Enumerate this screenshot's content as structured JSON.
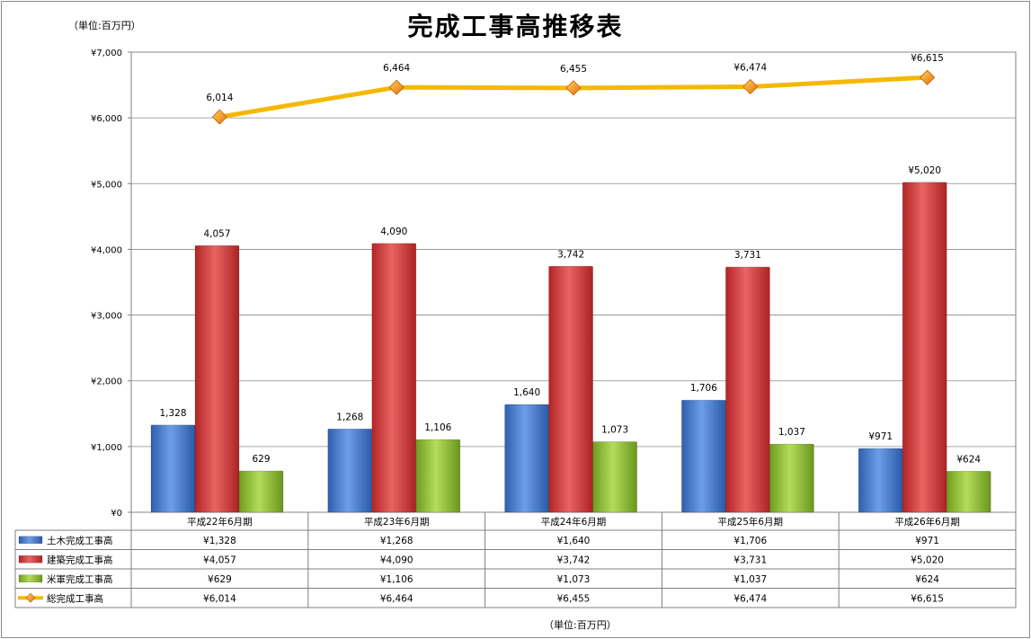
{
  "header": {
    "unit_top": "（単位:百万円）",
    "unit_bottom": "（単位:百万円）"
  },
  "chart_data": {
    "type": "bar",
    "title": "完成工事高推移表",
    "categories": [
      "平成22年6月期",
      "平成23年6月期",
      "平成24年6月期",
      "平成25年6月期",
      "平成26年6月期"
    ],
    "ylim": [
      0,
      7000
    ],
    "yticks": [
      0,
      1000,
      2000,
      3000,
      4000,
      5000,
      6000,
      7000
    ],
    "ytick_labels": [
      "¥0",
      "¥1,000",
      "¥2,000",
      "¥3,000",
      "¥4,000",
      "¥5,000",
      "¥6,000",
      "¥7,000"
    ],
    "grid": true,
    "legend_placement": "data-table-left",
    "series": [
      {
        "name": "土木完成工事高",
        "kind": "bar",
        "color": "#4a7fd0",
        "values": [
          1328,
          1268,
          1640,
          1706,
          971
        ],
        "data_labels": [
          "1,328",
          "1,268",
          "1,640",
          "1,706",
          "¥971"
        ],
        "table_labels": [
          "¥1,328",
          "¥1,268",
          "¥1,640",
          "¥1,706",
          "¥971"
        ]
      },
      {
        "name": "建築完成工事高",
        "kind": "bar",
        "color": "#d33f3f",
        "values": [
          4057,
          4090,
          3742,
          3731,
          5020
        ],
        "data_labels": [
          "4,057",
          "4,090",
          "3,742",
          "3,731",
          "¥5,020"
        ],
        "table_labels": [
          "¥4,057",
          "¥4,090",
          "¥3,742",
          "¥3,731",
          "¥5,020"
        ]
      },
      {
        "name": "米軍完成工事高",
        "kind": "bar",
        "color": "#92c23a",
        "values": [
          629,
          1106,
          1073,
          1037,
          624
        ],
        "data_labels": [
          "629",
          "1,106",
          "1,073",
          "1,037",
          "¥624"
        ],
        "table_labels": [
          "¥629",
          "¥1,106",
          "¥1,073",
          "¥1,037",
          "¥624"
        ]
      },
      {
        "name": "総完成工事高",
        "kind": "line",
        "color": "#f5b800",
        "marker_color": "#f08a1c",
        "values": [
          6014,
          6464,
          6455,
          6474,
          6615
        ],
        "data_labels": [
          "6,014",
          "6,464",
          "6,455",
          "¥6,474",
          "¥6,615"
        ],
        "table_labels": [
          "¥6,014",
          "¥6,464",
          "¥6,455",
          "¥6,474",
          "¥6,615"
        ]
      }
    ]
  }
}
